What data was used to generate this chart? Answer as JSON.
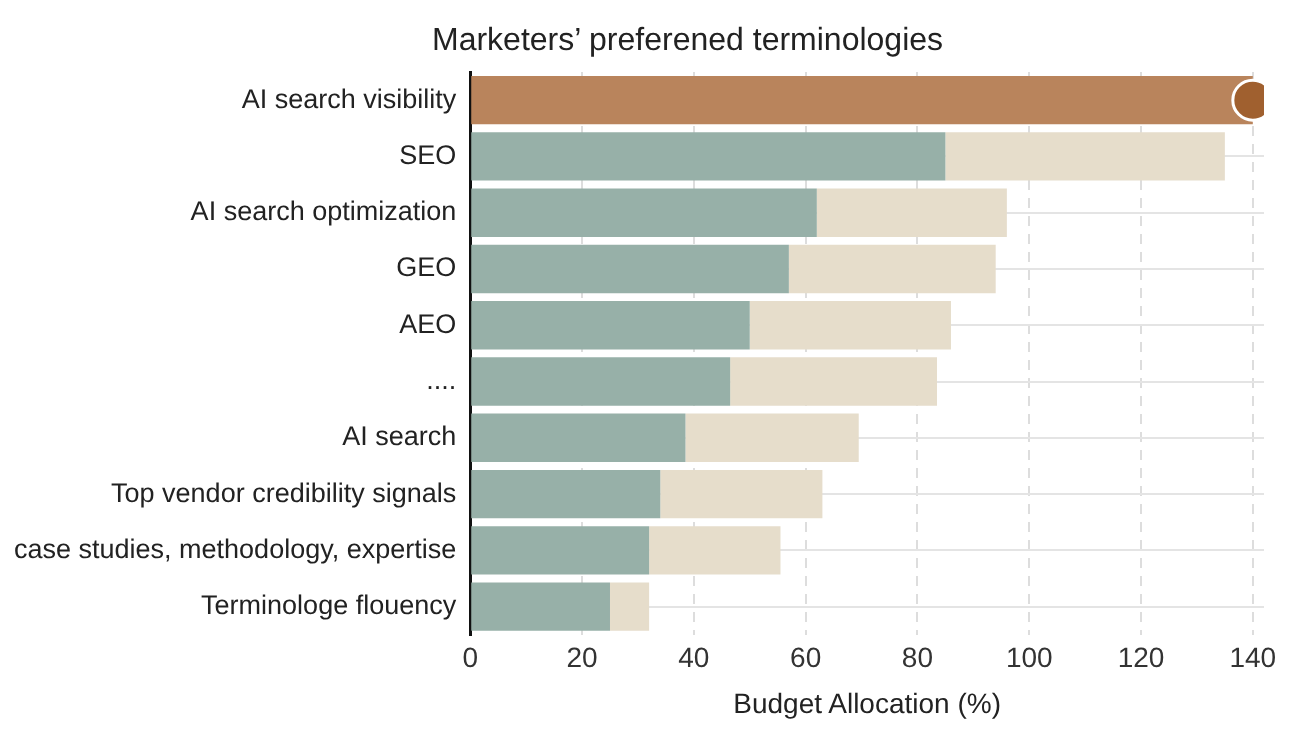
{
  "chart_data": {
    "type": "bar",
    "orientation": "horizontal",
    "stacked": true,
    "title": "Marketers’ preferened terminologies",
    "xlabel": "Budget Allocation (%)",
    "categories": [
      "AI search visibility",
      "SEO",
      "AI search optimization",
      "GEO",
      "AEO",
      "....",
      "AI search",
      "Top vendor credibility signals",
      "case studies, methodology, expertise",
      "Terminologe flouency"
    ],
    "series": [
      {
        "colors": [
          "#b9845c",
          "#97b0a8",
          "#97b0a8",
          "#97b0a8",
          "#97b0a8",
          "#97b0a8",
          "#97b0a8",
          "#97b0a8",
          "#97b0a8",
          "#97b0a8"
        ],
        "values": [
          140,
          85,
          62,
          57,
          50,
          46.5,
          38.5,
          34,
          32,
          25
        ]
      },
      {
        "color": "#e6ddcb",
        "values": [
          null,
          50,
          34,
          37,
          36,
          37,
          31,
          29,
          23.5,
          7
        ]
      },
      {
        "type": "scatter",
        "color": "#a0602f",
        "marker": "circle",
        "values": [
          140,
          null,
          null,
          null,
          null,
          null,
          null,
          null,
          null,
          null
        ]
      }
    ],
    "xlim": [
      0,
      142
    ],
    "xticks": [
      0,
      20,
      40,
      60,
      80,
      100,
      120,
      140
    ],
    "grid": true,
    "legend": false
  }
}
